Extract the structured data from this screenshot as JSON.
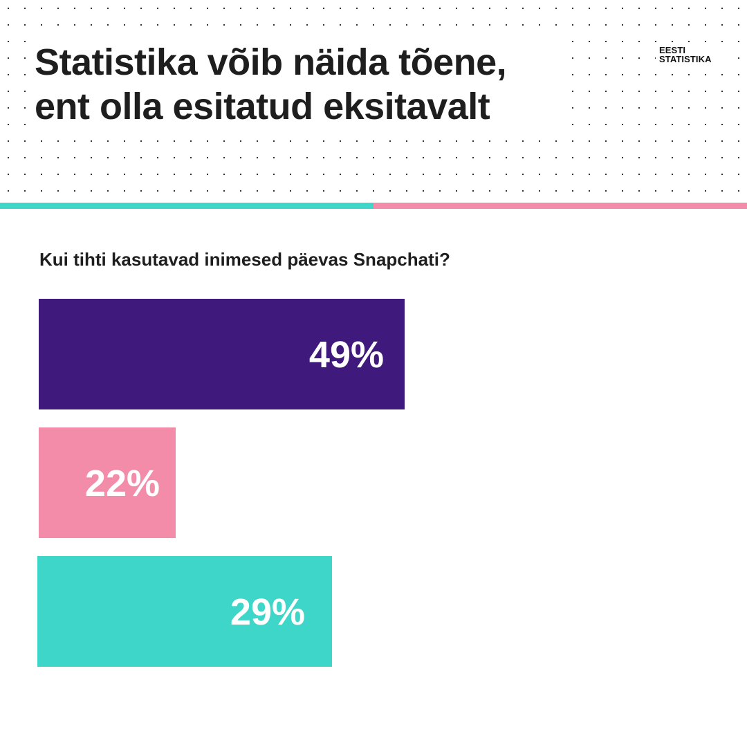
{
  "header": {
    "title_line1": "Statistika võib näida tõene,",
    "title_line2": "ent olla esitatud eksitavalt",
    "logo_line1": "EESTI",
    "logo_line2": "STATISTIKA"
  },
  "divider_colors": [
    "#3dd6c8",
    "#f38ca8"
  ],
  "chart_data": {
    "type": "bar",
    "orientation": "horizontal",
    "title": "Kui tihti kasutavad inimesed päevas Snapchati?",
    "values": [
      49,
      22,
      29
    ],
    "labels": [
      "49%",
      "22%",
      "29%"
    ],
    "colors": [
      "#3f197b",
      "#f38ca8",
      "#3dd6c8"
    ],
    "unit": "%",
    "grid": false,
    "legend": "none"
  }
}
